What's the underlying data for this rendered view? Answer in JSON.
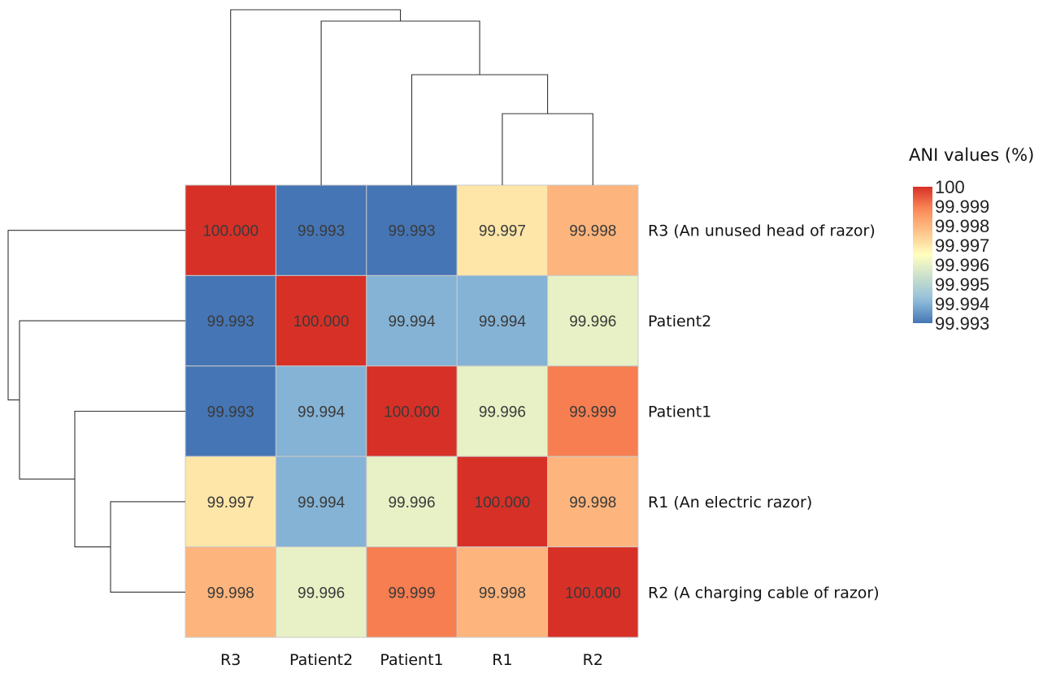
{
  "chart_data": {
    "type": "heatmap",
    "title": "",
    "columns": [
      "R3",
      "Patient2",
      "Patient1",
      "R1",
      "R2"
    ],
    "rows": [
      "R3 (An unused head of razor)",
      "Patient2",
      "Patient1",
      "R1 (An electric razor)",
      "R2 (A charging cable of razor)"
    ],
    "values": [
      [
        100.0,
        99.993,
        99.993,
        99.997,
        99.998
      ],
      [
        99.993,
        100.0,
        99.994,
        99.994,
        99.996
      ],
      [
        99.993,
        99.994,
        100.0,
        99.996,
        99.999
      ],
      [
        99.997,
        99.994,
        99.996,
        100.0,
        99.998
      ],
      [
        99.998,
        99.996,
        99.999,
        99.998,
        100.0
      ]
    ],
    "value_labels": [
      [
        "100.000",
        "99.993",
        "99.993",
        "99.997",
        "99.998"
      ],
      [
        "99.993",
        "100.000",
        "99.994",
        "99.994",
        "99.996"
      ],
      [
        "99.993",
        "99.994",
        "100.000",
        "99.996",
        "99.999"
      ],
      [
        "99.997",
        "99.994",
        "99.996",
        "100.000",
        "99.998"
      ],
      [
        "99.998",
        "99.996",
        "99.999",
        "99.998",
        "100.000"
      ]
    ],
    "legend": {
      "title": "ANI values (%)",
      "ticks": [
        "100",
        "99.999",
        "99.998",
        "99.997",
        "99.996",
        "99.995",
        "99.994",
        "99.993"
      ],
      "range": [
        99.993,
        100
      ]
    },
    "colors": {
      "low": "#4575b4",
      "mid": "#ffffbf",
      "high": "#d73027"
    }
  }
}
